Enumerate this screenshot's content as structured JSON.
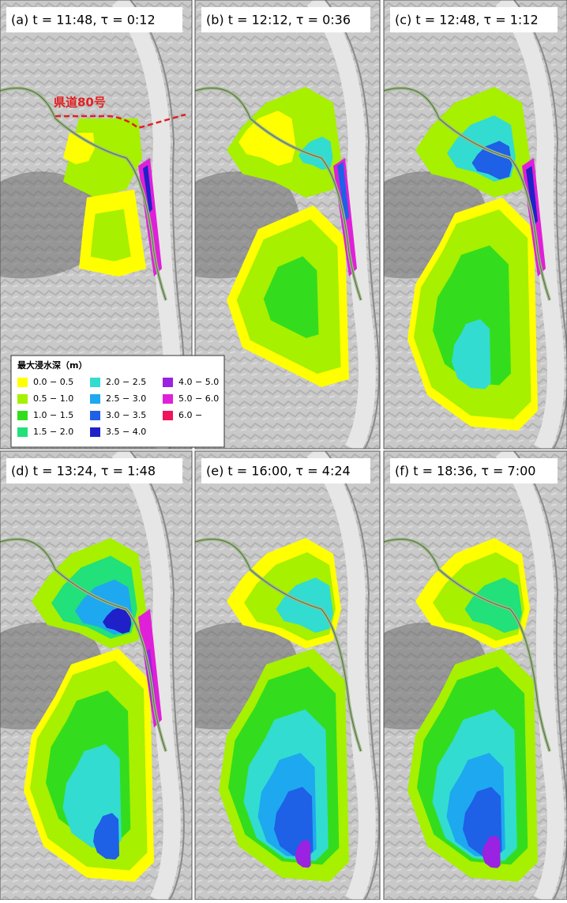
{
  "panels": [
    {
      "label": "(a) t = 11:48, τ = 0:12"
    },
    {
      "label": "(b) t = 12:12, τ = 0:36"
    },
    {
      "label": "(c) t = 12:48, τ = 1:12"
    },
    {
      "label": "(d) t = 13:24, τ = 1:48"
    },
    {
      "label": "(e) t = 16:00, τ = 4:24"
    },
    {
      "label": "(f) t = 18:36, τ = 7:00"
    }
  ],
  "road_label": "県道80号",
  "legend": {
    "title": "最大浸水深（m）",
    "entries": [
      {
        "label": "0.0 − 0.5",
        "color": "#ffff00"
      },
      {
        "label": "0.5 − 1.0",
        "color": "#a6f000"
      },
      {
        "label": "1.0 − 1.5",
        "color": "#33dd1e"
      },
      {
        "label": "1.5 − 2.0",
        "color": "#22e07a"
      },
      {
        "label": "2.0 − 2.5",
        "color": "#33dcd0"
      },
      {
        "label": "2.5 − 3.0",
        "color": "#1ea8f0"
      },
      {
        "label": "3.0 − 3.5",
        "color": "#1e60e6"
      },
      {
        "label": "3.5 − 4.0",
        "color": "#2020c8"
      },
      {
        "label": "4.0 − 5.0",
        "color": "#9a22e0"
      },
      {
        "label": "5.0 − 6.0",
        "color": "#e020d8"
      },
      {
        "label": "6.0 −",
        "color": "#f0145a"
      }
    ]
  }
}
